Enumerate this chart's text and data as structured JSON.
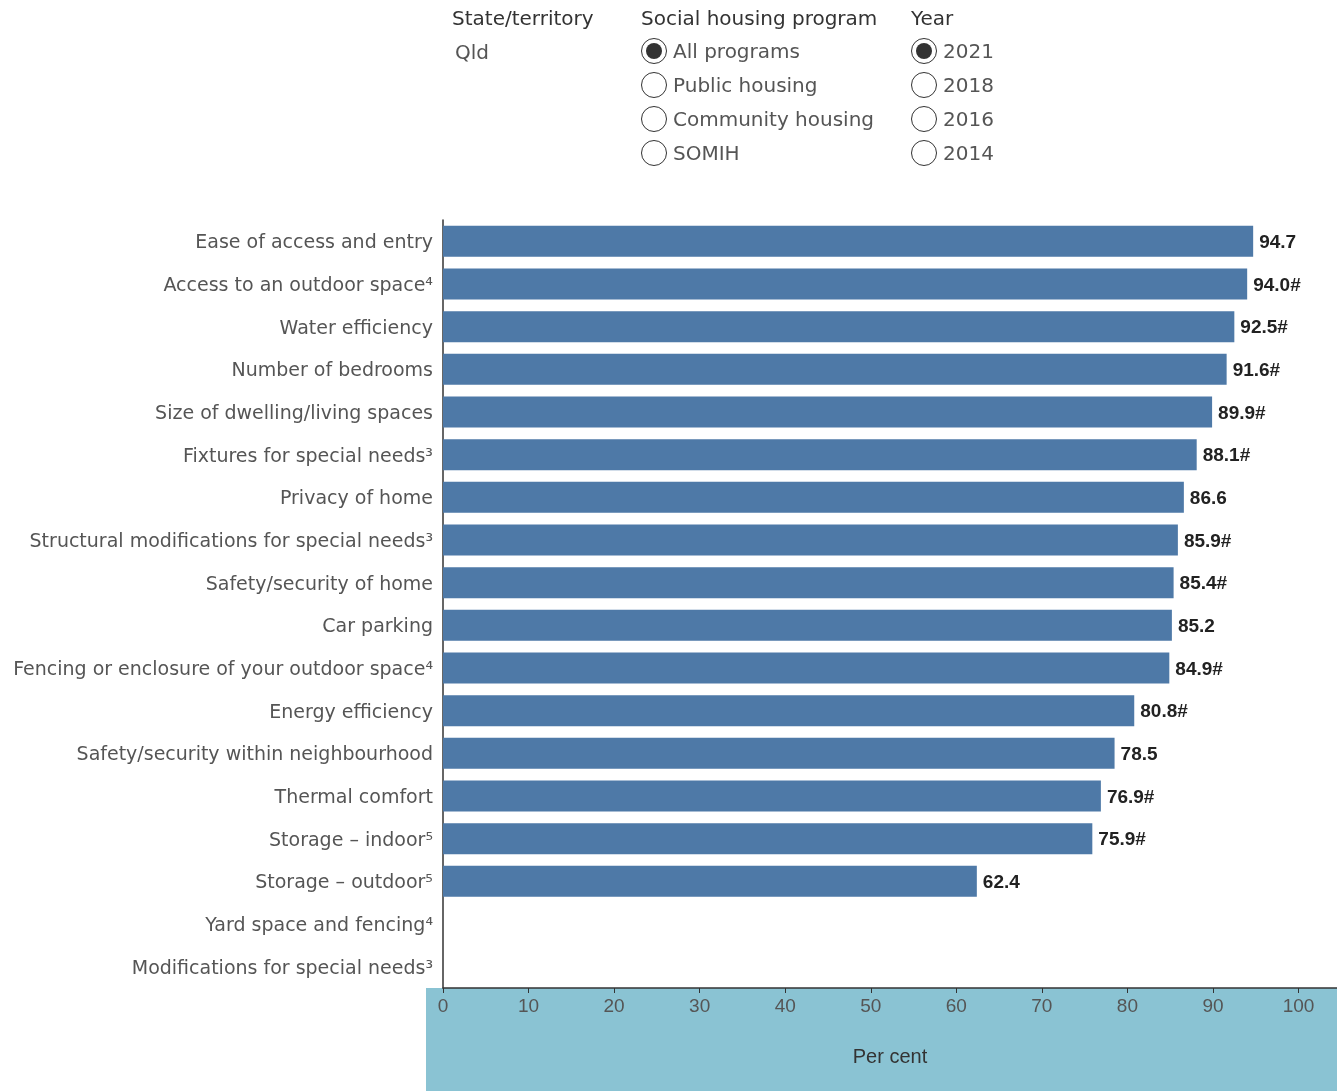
{
  "chart_data": {
    "type": "bar",
    "orientation": "horizontal",
    "categories": [
      "Ease of access and entry",
      "Access to an outdoor space⁴",
      "Water efficiency",
      "Number of bedrooms",
      "Size of dwelling/living spaces",
      "Fixtures for special needs³",
      "Privacy of home",
      "Structural modifications for special needs³",
      "Safety/security of home",
      "Car parking",
      "Fencing or enclosure of your outdoor space⁴",
      "Energy efficiency",
      "Safety/security within neighbourhood",
      "Thermal comfort",
      "Storage – indoor⁵",
      "Storage – outdoor⁵",
      "Yard space and fencing⁴",
      "Modifications for special needs³"
    ],
    "values": [
      94.7,
      94.0,
      92.5,
      91.6,
      89.9,
      88.1,
      86.6,
      85.9,
      85.4,
      85.2,
      84.9,
      80.8,
      78.5,
      76.9,
      75.9,
      62.4,
      null,
      null
    ],
    "value_labels": [
      "94.7",
      "94.0#",
      "92.5#",
      "91.6#",
      "89.9#",
      "88.1#",
      "86.6",
      "85.9#",
      "85.4#",
      "85.2",
      "84.9#",
      "80.8#",
      "78.5",
      "76.9#",
      "75.9#",
      "62.4",
      null,
      null
    ],
    "color": "#4e79a7",
    "xlabel": "Per cent",
    "xlim": [
      0,
      104.5
    ],
    "xticks": [
      0,
      10,
      20,
      30,
      40,
      50,
      60,
      70,
      80,
      90,
      100
    ],
    "grid": false,
    "annotations": [
      "State/territory",
      "Qld",
      "Social housing program",
      "All programs",
      "Public housing",
      "Community housing",
      "SOMIH",
      "Year",
      "2021",
      "2018",
      "2016",
      "2014"
    ]
  }
}
